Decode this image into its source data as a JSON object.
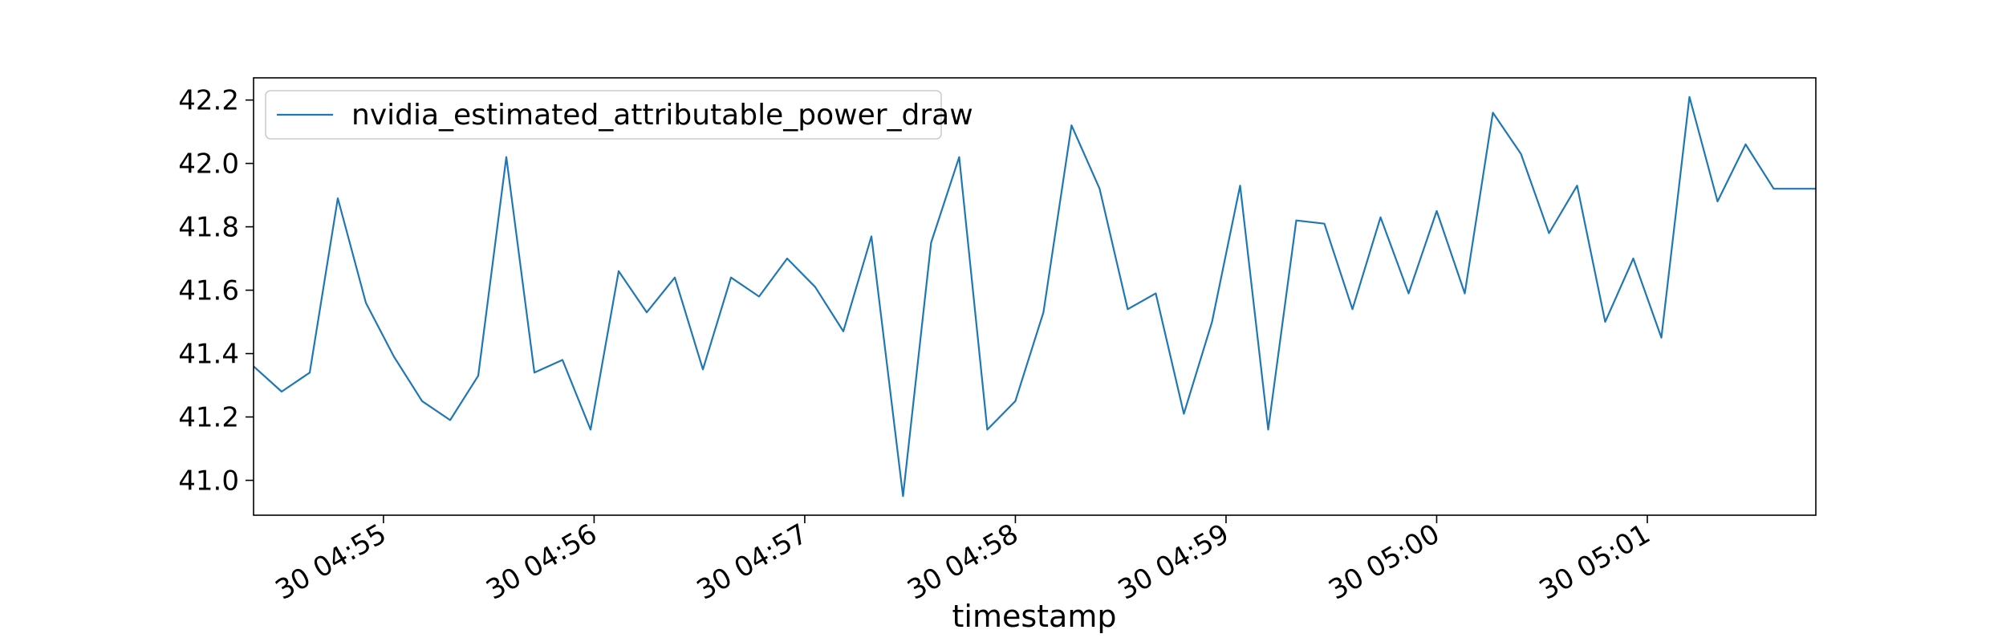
{
  "chart_data": {
    "type": "line",
    "title": "",
    "xlabel": "timestamp",
    "ylabel": "",
    "ylim": [
      40.89,
      42.27
    ],
    "yticks": [
      41.0,
      41.2,
      41.4,
      41.6,
      41.8,
      42.0,
      42.2
    ],
    "yticklabels": [
      "41.0",
      "41.2",
      "41.4",
      "41.6",
      "41.8",
      "42.0",
      "42.2"
    ],
    "xlim": [
      "04:54:23",
      "05:01:48"
    ],
    "xticks": [
      "04:55:00",
      "04:56:00",
      "04:57:00",
      "04:58:00",
      "04:59:00",
      "05:00:00",
      "05:01:00"
    ],
    "xticklabels": [
      "30 04:55",
      "30 04:56",
      "30 04:57",
      "30 04:58",
      "30 04:59",
      "30 05:00",
      "30 05:01"
    ],
    "grid": false,
    "legend_position": "upper-left",
    "x": [
      "04:54:23",
      "04:54:31",
      "04:54:39",
      "04:54:47",
      "04:54:55",
      "04:55:03",
      "04:55:11",
      "04:55:19",
      "04:55:27",
      "04:55:35",
      "04:55:43",
      "04:55:51",
      "04:55:59",
      "04:56:07",
      "04:56:15",
      "04:56:23",
      "04:56:31",
      "04:56:39",
      "04:56:47",
      "04:56:55",
      "04:57:03",
      "04:57:11",
      "04:57:19",
      "04:57:28",
      "04:57:36",
      "04:57:44",
      "04:57:52",
      "04:58:00",
      "04:58:08",
      "04:58:16",
      "04:58:24",
      "04:58:32",
      "04:58:40",
      "04:58:48",
      "04:58:56",
      "04:59:04",
      "04:59:12",
      "04:59:20",
      "04:59:28",
      "04:59:36",
      "04:59:44",
      "04:59:52",
      "05:00:00",
      "05:00:08",
      "05:00:16",
      "05:00:24",
      "05:00:32",
      "05:00:40",
      "05:00:48",
      "05:00:56",
      "05:01:04",
      "05:01:12",
      "05:01:20",
      "05:01:28",
      "05:01:36",
      "05:01:48"
    ],
    "series": [
      {
        "name": "nvidia_estimated_attributable_power_draw",
        "color": "#1f77b4",
        "values": [
          41.36,
          41.28,
          41.34,
          41.89,
          41.56,
          41.39,
          41.25,
          41.19,
          41.33,
          42.02,
          41.34,
          41.38,
          41.16,
          41.66,
          41.53,
          41.64,
          41.35,
          41.64,
          41.58,
          41.7,
          41.61,
          41.47,
          41.77,
          40.95,
          41.75,
          42.02,
          41.16,
          41.25,
          41.53,
          42.12,
          41.92,
          41.54,
          41.59,
          41.21,
          41.5,
          41.93,
          41.16,
          41.82,
          41.81,
          41.54,
          41.83,
          41.59,
          41.85,
          41.59,
          42.16,
          42.03,
          41.78,
          41.93,
          41.5,
          41.7,
          41.45,
          42.21,
          41.88,
          42.06,
          41.92,
          41.92
        ]
      }
    ]
  }
}
